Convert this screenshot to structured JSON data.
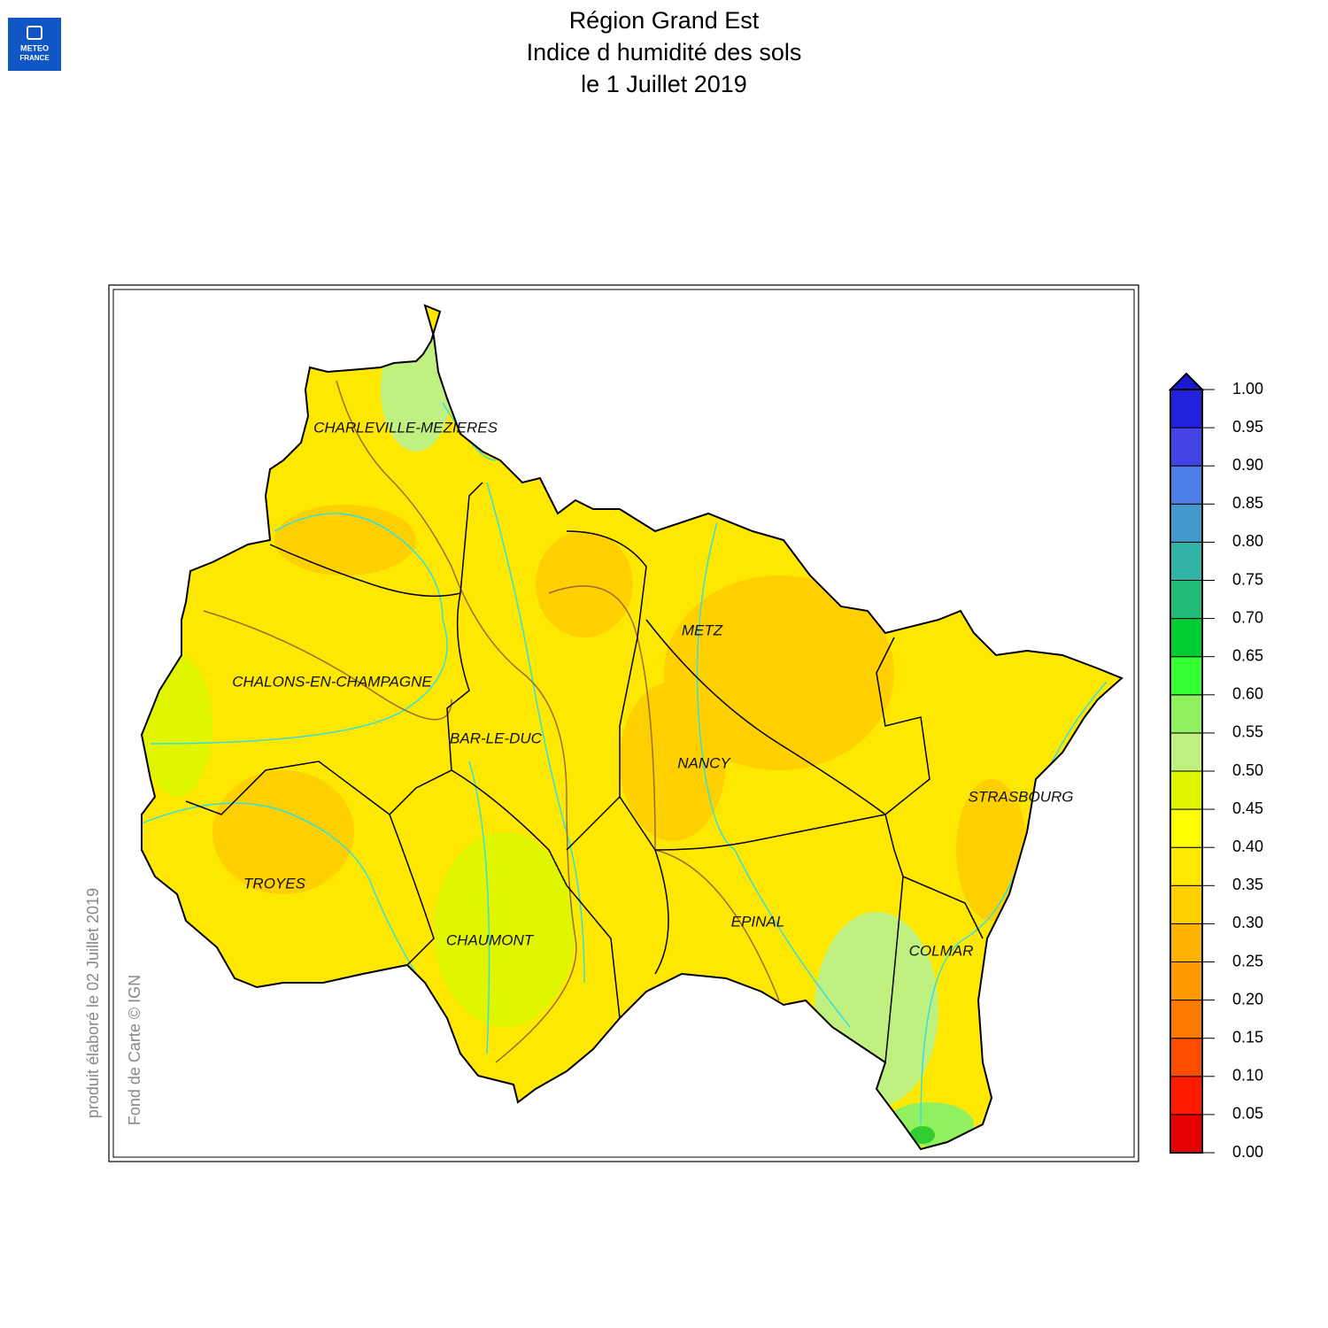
{
  "header": {
    "logo": [
      "METEO",
      "FRANCE"
    ],
    "title": [
      "Région Grand Est",
      "Indice d humidité des sols",
      "le 1 Juillet 2019"
    ]
  },
  "map": {
    "cities": [
      "CHARLEVILLE-MEZIERES",
      "CHALONS-EN-CHAMPAGNE",
      "BAR-LE-DUC",
      "METZ",
      "NANCY",
      "STRASBOURG",
      "TROYES",
      "CHAUMONT",
      "EPINAL",
      "COLMAR"
    ]
  },
  "legend": {
    "lim": [
      0,
      1
    ],
    "ticks": [
      {
        "value": 0,
        "label": "0.00"
      },
      {
        "value": 0.05,
        "label": "0.05"
      },
      {
        "value": 0.1,
        "label": "0.10"
      },
      {
        "value": 0.15,
        "label": "0.15"
      },
      {
        "value": 0.2,
        "label": "0.20"
      },
      {
        "value": 0.25,
        "label": "0.25"
      },
      {
        "value": 0.3,
        "label": "0.30"
      },
      {
        "value": 0.35,
        "label": "0.35"
      },
      {
        "value": 0.4,
        "label": "0.40"
      },
      {
        "value": 0.45,
        "label": "0.45"
      },
      {
        "value": 0.5,
        "label": "0.50"
      },
      {
        "value": 0.55,
        "label": "0.55"
      },
      {
        "value": 0.6,
        "label": "0.60"
      },
      {
        "value": 0.65,
        "label": "0.65"
      },
      {
        "value": 0.7,
        "label": "0.70"
      },
      {
        "value": 0.75,
        "label": "0.75"
      },
      {
        "value": 0.8,
        "label": "0.80"
      },
      {
        "value": 0.85,
        "label": "0.85"
      },
      {
        "value": 0.9,
        "label": "0.90"
      },
      {
        "value": 0.95,
        "label": "0.95"
      },
      {
        "value": 1,
        "label": "1.00"
      }
    ],
    "colors": [
      "#e60000",
      "#ff1a00",
      "#ff4d00",
      "#ff7a00",
      "#ff9900",
      "#ffb300",
      "#ffd000",
      "#ffe800",
      "#ffff00",
      "#e0f500",
      "#c0f080",
      "#90f060",
      "#33ff33",
      "#00cc33",
      "#22bb77",
      "#33b3a6",
      "#4499cc",
      "#4d7ee6",
      "#4444e6",
      "#2222dd"
    ],
    "over_color": "#1a1ad0"
  },
  "credits": [
    "produit élaboré le 02 Juillet 2019",
    "Fond de Carte © IGN"
  ]
}
